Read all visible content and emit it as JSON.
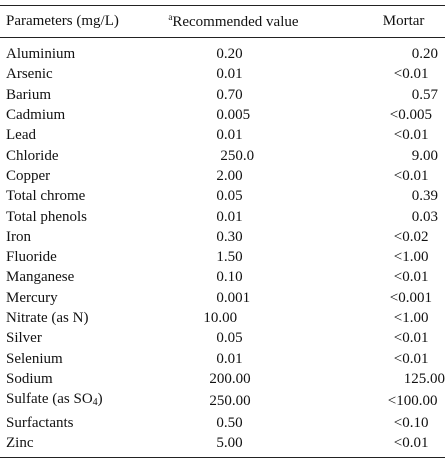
{
  "table": {
    "headers": {
      "parameter": "Parameters (mg/L)",
      "recommended_sup": "a",
      "recommended": "Recommended value",
      "mortar": "Mortar"
    },
    "rows": [
      {
        "param": "Aluminium",
        "rec": "0.20",
        "mortar": "0.20"
      },
      {
        "param": "Arsenic",
        "rec": "0.01",
        "mortar": "<0.01"
      },
      {
        "param": "Barium",
        "rec": "0.70",
        "mortar": "0.57"
      },
      {
        "param": "Cadmium",
        "rec": "0.005",
        "mortar": "<0.005"
      },
      {
        "param": "Lead",
        "rec": "0.01",
        "mortar": "<0.01"
      },
      {
        "param": "Chloride",
        "rec": "250.0",
        "mortar": "9.00"
      },
      {
        "param": "Copper",
        "rec": "2.00",
        "mortar": "<0.01"
      },
      {
        "param": "Total chrome",
        "rec": "0.05",
        "mortar": "0.39"
      },
      {
        "param": "Total phenols",
        "rec": "0.01",
        "mortar": "0.03"
      },
      {
        "param": "Iron",
        "rec": "0.30",
        "mortar": "<0.02"
      },
      {
        "param": "Fluoride",
        "rec": "1.50",
        "mortar": "<1.00"
      },
      {
        "param": "Manganese",
        "rec": "0.10",
        "mortar": "<0.01"
      },
      {
        "param": "Mercury",
        "rec": "0.001",
        "mortar": "<0.001"
      },
      {
        "param": "Nitrate (as N)",
        "rec": "10.00",
        "mortar": "<1.00"
      },
      {
        "param": "Silver",
        "rec": "0.05",
        "mortar": "<0.01"
      },
      {
        "param": "Selenium",
        "rec": "0.01",
        "mortar": "<0.01"
      },
      {
        "param": "Sodium",
        "rec": "200.00",
        "mortar": "125.00"
      },
      {
        "param": "Sulfate (as SO",
        "param_sub": "4",
        "param_tail": ")",
        "rec": "250.00",
        "mortar": "<100.00"
      },
      {
        "param": "Surfactants",
        "rec": "0.50",
        "mortar": "<0.10"
      },
      {
        "param": "Zinc",
        "rec": "5.00",
        "mortar": "<0.01"
      }
    ]
  }
}
